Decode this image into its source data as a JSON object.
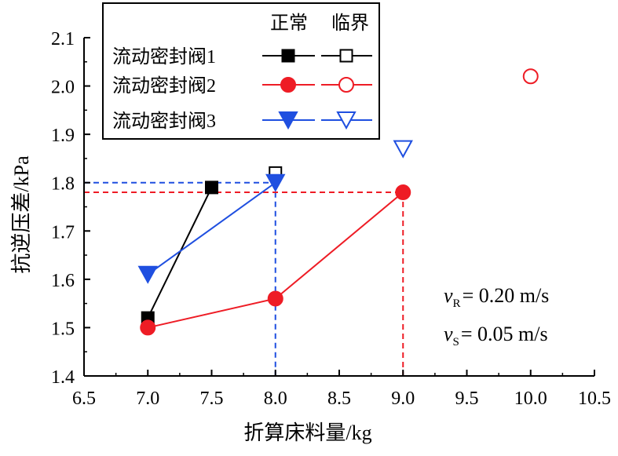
{
  "chart_data": {
    "type": "line",
    "xlabel": "折算床料量/kg",
    "ylabel": "抗逆压差/kPa",
    "xlim": [
      6.5,
      10.5
    ],
    "ylim": [
      1.4,
      2.1
    ],
    "xticks": [
      "6.5",
      "7.0",
      "7.5",
      "8.0",
      "8.5",
      "9.0",
      "9.5",
      "10.0",
      "10.5"
    ],
    "yticks": [
      "1.4",
      "1.5",
      "1.6",
      "1.7",
      "1.8",
      "1.9",
      "2.0",
      "2.1"
    ],
    "grid": false,
    "legend": {
      "placement": "top-left",
      "col_normal": "正常",
      "col_critical": "临界",
      "entries": [
        "流动密封阀1",
        "流动密封阀2",
        "流动密封阀3"
      ]
    },
    "annotations": {
      "vR_symbol": "v",
      "vR_sub": "R",
      "vR_text": "= 0.20 m/s",
      "vS_symbol": "v",
      "vS_sub": "S",
      "vS_text": "= 0.05 m/s"
    },
    "series": [
      {
        "name": "流动密封阀1",
        "state": "正常",
        "color": "#000000",
        "marker": "square",
        "filled": true,
        "line": "solid",
        "x": [
          7.0,
          7.5
        ],
        "y": [
          1.52,
          1.79
        ]
      },
      {
        "name": "流动密封阀1",
        "state": "临界",
        "color": "#000000",
        "marker": "square",
        "filled": false,
        "line": "none",
        "x": [
          8.0
        ],
        "y": [
          1.82
        ]
      },
      {
        "name": "流动密封阀2",
        "state": "正常",
        "color": "#ee1c25",
        "marker": "circle",
        "filled": true,
        "line": "solid",
        "x": [
          7.0,
          8.0,
          9.0
        ],
        "y": [
          1.5,
          1.56,
          1.78
        ]
      },
      {
        "name": "流动密封阀2",
        "state": "临界",
        "color": "#ee1c25",
        "marker": "circle",
        "filled": false,
        "line": "none",
        "x": [
          10.0
        ],
        "y": [
          2.02
        ]
      },
      {
        "name": "流动密封阀3",
        "state": "正常",
        "color": "#1f4fe0",
        "marker": "triangle-down",
        "filled": true,
        "line": "solid",
        "x": [
          7.0,
          8.0
        ],
        "y": [
          1.61,
          1.8
        ]
      },
      {
        "name": "流动密封阀3",
        "state": "临界",
        "color": "#1f4fe0",
        "marker": "triangle-down",
        "filled": false,
        "line": "none",
        "x": [
          9.0
        ],
        "y": [
          1.87
        ]
      }
    ],
    "reference_lines": [
      {
        "color": "#1f4fe0",
        "x": 8.0,
        "y": 1.8
      },
      {
        "color": "#ee1c25",
        "x": 9.0,
        "y": 1.78
      }
    ]
  }
}
